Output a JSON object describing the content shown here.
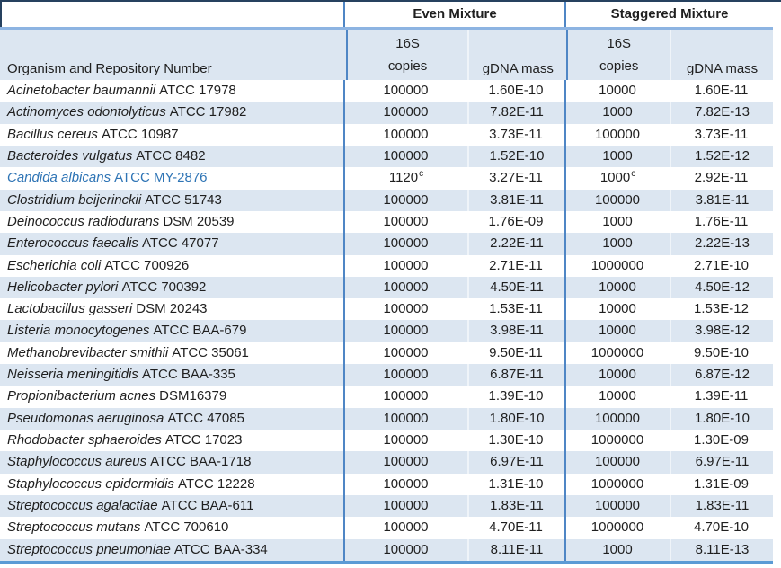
{
  "table": {
    "colors": {
      "stripe": "#dce6f1",
      "accent_text": "#2e74b5",
      "rule_dark": "#26415f",
      "rule_vertical": "#4f86c5",
      "rule_horizontal": "#8db4e2",
      "rule_bottom": "#5b9bd5"
    },
    "header": {
      "group_even": "Even Mixture",
      "group_staggered": "Staggered Mixture",
      "organism_col": "Organism and Repository Number",
      "copies_top": "16S",
      "copies_bottom": "copies",
      "gdna": "gDNA mass"
    },
    "rows": [
      {
        "name": "Acinetobacter baumannii",
        "repo": "ATCC 17978",
        "even_16s": "100000",
        "even_16s_sup": "",
        "even_gdna": "1.60E-10",
        "stag_16s": "10000",
        "stag_16s_sup": "",
        "stag_gdna": "1.60E-11",
        "accent": false
      },
      {
        "name": "Actinomyces odontolyticus",
        "repo": "ATCC 17982",
        "even_16s": "100000",
        "even_16s_sup": "",
        "even_gdna": "7.82E-11",
        "stag_16s": "1000",
        "stag_16s_sup": "",
        "stag_gdna": "7.82E-13",
        "accent": false
      },
      {
        "name": "Bacillus cereus",
        "repo": "ATCC 10987",
        "even_16s": "100000",
        "even_16s_sup": "",
        "even_gdna": "3.73E-11",
        "stag_16s": "100000",
        "stag_16s_sup": "",
        "stag_gdna": "3.73E-11",
        "accent": false
      },
      {
        "name": "Bacteroides vulgatus",
        "repo": "ATCC 8482",
        "even_16s": "100000",
        "even_16s_sup": "",
        "even_gdna": "1.52E-10",
        "stag_16s": "1000",
        "stag_16s_sup": "",
        "stag_gdna": "1.52E-12",
        "accent": false
      },
      {
        "name": "Candida albicans",
        "repo": "ATCC MY-2876",
        "even_16s": "1120",
        "even_16s_sup": "c",
        "even_gdna": "3.27E-11",
        "stag_16s": "1000",
        "stag_16s_sup": "c",
        "stag_gdna": "2.92E-11",
        "accent": true
      },
      {
        "name": "Clostridium beijerinckii",
        "repo": "ATCC 51743",
        "even_16s": "100000",
        "even_16s_sup": "",
        "even_gdna": "3.81E-11",
        "stag_16s": "100000",
        "stag_16s_sup": "",
        "stag_gdna": "3.81E-11",
        "accent": false
      },
      {
        "name": "Deinococcus radiodurans",
        "repo": "DSM 20539",
        "even_16s": "100000",
        "even_16s_sup": "",
        "even_gdna": "1.76E-09",
        "stag_16s": "1000",
        "stag_16s_sup": "",
        "stag_gdna": "1.76E-11",
        "accent": false
      },
      {
        "name": "Enterococcus faecalis",
        "repo": "ATCC 47077",
        "even_16s": "100000",
        "even_16s_sup": "",
        "even_gdna": "2.22E-11",
        "stag_16s": "1000",
        "stag_16s_sup": "",
        "stag_gdna": "2.22E-13",
        "accent": false
      },
      {
        "name": "Escherichia coli",
        "repo": "ATCC 700926",
        "even_16s": "100000",
        "even_16s_sup": "",
        "even_gdna": "2.71E-11",
        "stag_16s": "1000000",
        "stag_16s_sup": "",
        "stag_gdna": "2.71E-10",
        "accent": false
      },
      {
        "name": "Helicobacter pylori",
        "repo": "ATCC 700392",
        "even_16s": "100000",
        "even_16s_sup": "",
        "even_gdna": "4.50E-11",
        "stag_16s": "10000",
        "stag_16s_sup": "",
        "stag_gdna": "4.50E-12",
        "accent": false
      },
      {
        "name": "Lactobacillus gasseri",
        "repo": "DSM 20243",
        "even_16s": "100000",
        "even_16s_sup": "",
        "even_gdna": "1.53E-11",
        "stag_16s": "10000",
        "stag_16s_sup": "",
        "stag_gdna": "1.53E-12",
        "accent": false
      },
      {
        "name": "Listeria monocytogenes",
        "repo": "ATCC BAA-679",
        "even_16s": "100000",
        "even_16s_sup": "",
        "even_gdna": "3.98E-11",
        "stag_16s": "10000",
        "stag_16s_sup": "",
        "stag_gdna": "3.98E-12",
        "accent": false
      },
      {
        "name": "Methanobrevibacter smithii",
        "repo": "ATCC 35061",
        "even_16s": "100000",
        "even_16s_sup": "",
        "even_gdna": "9.50E-11",
        "stag_16s": "1000000",
        "stag_16s_sup": "",
        "stag_gdna": "9.50E-10",
        "accent": false
      },
      {
        "name": "Neisseria meningitidis",
        "repo": "ATCC BAA-335",
        "even_16s": "100000",
        "even_16s_sup": "",
        "even_gdna": "6.87E-11",
        "stag_16s": "10000",
        "stag_16s_sup": "",
        "stag_gdna": "6.87E-12",
        "accent": false
      },
      {
        "name": "Propionibacterium acnes",
        "repo": "DSM16379",
        "even_16s": "100000",
        "even_16s_sup": "",
        "even_gdna": "1.39E-10",
        "stag_16s": "10000",
        "stag_16s_sup": "",
        "stag_gdna": "1.39E-11",
        "accent": false
      },
      {
        "name": "Pseudomonas aeruginosa",
        "repo": "ATCC 47085",
        "even_16s": "100000",
        "even_16s_sup": "",
        "even_gdna": "1.80E-10",
        "stag_16s": "100000",
        "stag_16s_sup": "",
        "stag_gdna": "1.80E-10",
        "accent": false
      },
      {
        "name": "Rhodobacter sphaeroides",
        "repo": "ATCC 17023",
        "even_16s": "100000",
        "even_16s_sup": "",
        "even_gdna": "1.30E-10",
        "stag_16s": "1000000",
        "stag_16s_sup": "",
        "stag_gdna": "1.30E-09",
        "accent": false
      },
      {
        "name": "Staphylococcus aureus",
        "repo": "ATCC BAA-1718",
        "even_16s": "100000",
        "even_16s_sup": "",
        "even_gdna": "6.97E-11",
        "stag_16s": "100000",
        "stag_16s_sup": "",
        "stag_gdna": "6.97E-11",
        "accent": false
      },
      {
        "name": "Staphylococcus epidermidis",
        "repo": "ATCC 12228",
        "even_16s": "100000",
        "even_16s_sup": "",
        "even_gdna": "1.31E-10",
        "stag_16s": "1000000",
        "stag_16s_sup": "",
        "stag_gdna": "1.31E-09",
        "accent": false
      },
      {
        "name": "Streptococcus agalactiae",
        "repo": "ATCC BAA-611",
        "even_16s": "100000",
        "even_16s_sup": "",
        "even_gdna": "1.83E-11",
        "stag_16s": "100000",
        "stag_16s_sup": "",
        "stag_gdna": "1.83E-11",
        "accent": false
      },
      {
        "name": "Streptococcus mutans",
        "repo": "ATCC 700610",
        "even_16s": "100000",
        "even_16s_sup": "",
        "even_gdna": "4.70E-11",
        "stag_16s": "1000000",
        "stag_16s_sup": "",
        "stag_gdna": "4.70E-10",
        "accent": false
      },
      {
        "name": "Streptococcus pneumoniae",
        "repo": "ATCC BAA-334",
        "even_16s": "100000",
        "even_16s_sup": "",
        "even_gdna": "8.11E-11",
        "stag_16s": "1000",
        "stag_16s_sup": "",
        "stag_gdna": "8.11E-13",
        "accent": false
      }
    ]
  }
}
